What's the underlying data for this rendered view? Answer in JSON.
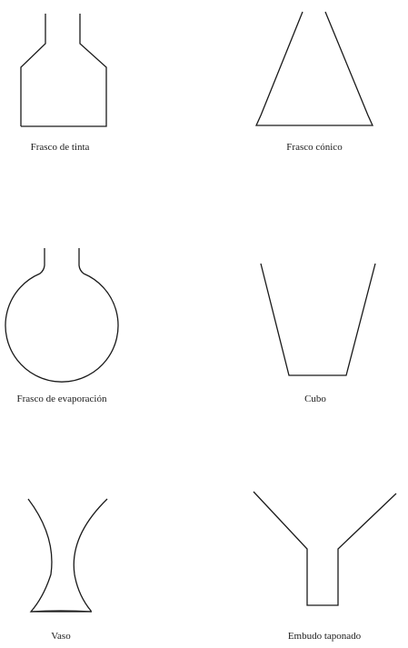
{
  "captions": {
    "ink_bottle": "Frasco de tinta",
    "conical_flask": "Frasco cónico",
    "evaporating_flask": "Frasco de evaporación",
    "bucket": "Cubo",
    "glass": "Vaso",
    "stoppered_funnel": "Embudo taponado"
  },
  "colors": {
    "ink": "#1a1a1a",
    "background": "#ffffff"
  }
}
